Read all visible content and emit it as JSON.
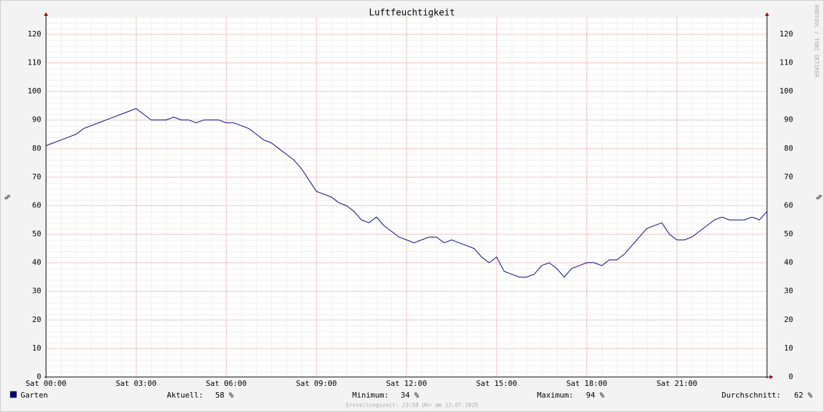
{
  "chart_data": {
    "type": "line",
    "title": "Luftfeuchtigkeit",
    "ylabel": "%",
    "watermark": "RRDTOOL / TOBI OETIKER",
    "footer": "Erstellungszeit: 23:58 Uhr am 12.07.2025",
    "xlim": [
      0,
      24
    ],
    "xticks": [
      {
        "value": 0,
        "label": "Sat 00:00"
      },
      {
        "value": 3,
        "label": "Sat 03:00"
      },
      {
        "value": 6,
        "label": "Sat 06:00"
      },
      {
        "value": 9,
        "label": "Sat 09:00"
      },
      {
        "value": 12,
        "label": "Sat 12:00"
      },
      {
        "value": 15,
        "label": "Sat 15:00"
      },
      {
        "value": 18,
        "label": "Sat 18:00"
      },
      {
        "value": 21,
        "label": "Sat 21:00"
      }
    ],
    "ylim": [
      0,
      126
    ],
    "yticks": [
      0,
      10,
      20,
      30,
      40,
      50,
      60,
      70,
      80,
      90,
      100,
      110,
      120
    ],
    "grid": true,
    "x": [
      0,
      0.25,
      0.5,
      0.75,
      1,
      1.25,
      1.5,
      1.75,
      2,
      2.25,
      2.5,
      2.75,
      3,
      3.25,
      3.5,
      3.75,
      4,
      4.25,
      4.5,
      4.75,
      5,
      5.25,
      5.5,
      5.75,
      6,
      6.25,
      6.5,
      6.75,
      7,
      7.25,
      7.5,
      7.75,
      8,
      8.25,
      8.5,
      8.75,
      9,
      9.25,
      9.5,
      9.75,
      10,
      10.25,
      10.5,
      10.75,
      11,
      11.25,
      11.5,
      11.75,
      12,
      12.25,
      12.5,
      12.75,
      13,
      13.25,
      13.5,
      13.75,
      14,
      14.25,
      14.5,
      14.75,
      15,
      15.25,
      15.5,
      15.75,
      16,
      16.25,
      16.5,
      16.75,
      17,
      17.25,
      17.5,
      17.75,
      18,
      18.25,
      18.5,
      18.75,
      19,
      19.25,
      19.5,
      19.75,
      20,
      20.25,
      20.5,
      20.75,
      21,
      21.25,
      21.5,
      21.75,
      22,
      22.25,
      22.5,
      22.75,
      23,
      23.25,
      23.5,
      23.75,
      24
    ],
    "series": [
      {
        "name": "Garten",
        "color": "#000080",
        "values": [
          81,
          82,
          83,
          84,
          85,
          87,
          88,
          89,
          90,
          91,
          92,
          93,
          94,
          92,
          90,
          90,
          90,
          91,
          90,
          90,
          89,
          90,
          90,
          90,
          89,
          89,
          88,
          87,
          85,
          83,
          82,
          80,
          78,
          76,
          73,
          69,
          65,
          64,
          63,
          61,
          60,
          58,
          55,
          54,
          56,
          53,
          51,
          49,
          48,
          47,
          48,
          49,
          49,
          47,
          48,
          47,
          46,
          45,
          42,
          40,
          42,
          37,
          36,
          35,
          35,
          36,
          39,
          40,
          38,
          35,
          38,
          39,
          40,
          40,
          39,
          41,
          41,
          43,
          46,
          49,
          52,
          53,
          54,
          50,
          48,
          48,
          49,
          51,
          53,
          55,
          56,
          55,
          55,
          55,
          56,
          55,
          58
        ]
      }
    ],
    "stats": [
      {
        "label": "Aktuell:",
        "value": "58 %"
      },
      {
        "label": "Minimum:",
        "value": "34 %"
      },
      {
        "label": "Maximum:",
        "value": "94 %"
      },
      {
        "label": "Durchschnitt:",
        "value": "62 %"
      }
    ]
  }
}
